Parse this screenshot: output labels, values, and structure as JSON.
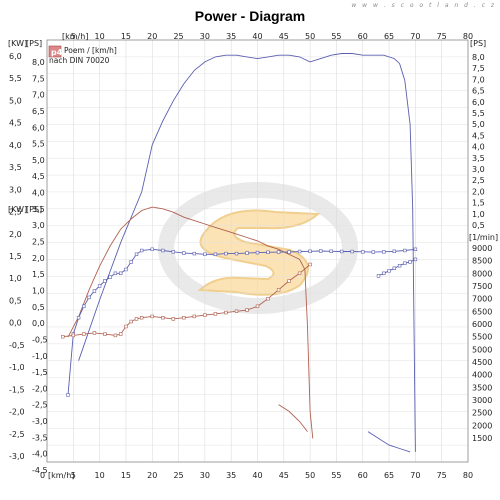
{
  "header": {
    "title": "Power - Diagram",
    "watermark_url": "w w w . s c o o t l a n d . c z"
  },
  "chart_data": {
    "type": "line",
    "title": "Power - Diagram",
    "x_unit_label": "[km/h]",
    "x_range": [
      0,
      80
    ],
    "x_ticks": [
      "5",
      "10",
      "15",
      "20",
      "25",
      "30",
      "35",
      "40",
      "45",
      "50",
      "55",
      "60",
      "65",
      "70",
      "75",
      "80"
    ],
    "y_left_outer_unit": "[KW]",
    "y_left_outer_range": [
      -3.0,
      6.0
    ],
    "y_left_outer_ticks": [
      "-3,0",
      "-2,5",
      "-2,0",
      "-1,5",
      "-1,0",
      "-0,5",
      "0,0",
      "0,5",
      "1,0",
      "1,5",
      "2,0",
      "2,5",
      "3,0",
      "3,5",
      "4,0",
      "4,5",
      "5,0",
      "5,5",
      "6,0"
    ],
    "y_left_inner_unit": "[PS]",
    "y_left_inner_range": [
      -4.5,
      8.0
    ],
    "y_left_inner_ticks": [
      "-4,5",
      "-4,0",
      "-3,5",
      "-3,0",
      "-2,5",
      "-2,0",
      "-1,5",
      "-1,0",
      "-0,5",
      "0,0",
      "0,5",
      "1,0",
      "1,5",
      "2,0",
      "2,5",
      "3,0",
      "3,5",
      "4,0",
      "4,5",
      "5,0",
      "5,5",
      "6,0",
      "6,5",
      "7,0",
      "7,5",
      "8,0"
    ],
    "y_right_upper_unit": "[PS]",
    "y_right_upper_ticks": [
      "0,5",
      "1,0",
      "1,5",
      "2,0",
      "2,5",
      "3,0",
      "3,5",
      "4,0",
      "4,5",
      "5,0",
      "5,5",
      "6,0",
      "6,5",
      "7,0",
      "7,5",
      "8,0"
    ],
    "y_right_lower_unit": "[1/min]",
    "y_right_lower_range": [
      1500,
      9000
    ],
    "y_right_lower_ticks": [
      "1500",
      "2000",
      "2500",
      "3000",
      "3500",
      "4000",
      "4500",
      "5000",
      "5500",
      "6000",
      "6500",
      "7000",
      "7500",
      "8000",
      "8500",
      "9000"
    ],
    "legend": {
      "badge": "p4",
      "line1": "Poem / [km/h]",
      "line2": "nach DIN 70020"
    },
    "series": [
      {
        "color": "#5a5fb0",
        "axis": "left_inner_PS",
        "x": [
          6,
          10,
          14,
          18,
          19,
          20,
          22,
          24,
          26,
          28,
          30,
          32,
          34,
          36,
          38,
          40,
          42,
          44,
          46,
          48,
          50,
          52,
          54,
          56,
          58,
          60,
          62,
          64,
          66,
          67,
          68,
          69,
          69.5,
          70
        ],
        "y": [
          -1.5,
          0.3,
          2.0,
          3.5,
          4.2,
          4.9,
          5.6,
          6.2,
          6.7,
          7.1,
          7.35,
          7.5,
          7.55,
          7.55,
          7.5,
          7.45,
          7.5,
          7.55,
          7.55,
          7.5,
          7.35,
          7.45,
          7.55,
          7.6,
          7.6,
          7.55,
          7.55,
          7.55,
          7.45,
          7.3,
          6.8,
          5.5,
          3.0,
          -4.2
        ]
      },
      {
        "color": "#b06050",
        "axis": "left_inner_PS",
        "x": [
          4,
          6,
          8,
          10,
          12,
          14,
          16,
          18,
          20,
          22,
          24,
          26,
          28,
          30,
          32,
          34,
          36,
          38,
          40,
          42,
          44,
          46,
          48,
          49,
          49.5,
          50,
          50.5
        ],
        "y": [
          -0.8,
          -0.2,
          0.6,
          1.3,
          1.9,
          2.4,
          2.7,
          2.95,
          3.05,
          3.0,
          2.9,
          2.75,
          2.65,
          2.55,
          2.45,
          2.35,
          2.25,
          2.15,
          2.05,
          1.9,
          1.8,
          1.65,
          1.5,
          1.2,
          -0.5,
          -3.0,
          -3.8
        ]
      },
      {
        "color": "#b06050",
        "axis": "left_inner_PS",
        "x": [
          44,
          46,
          48,
          49.5
        ],
        "y": [
          -2.8,
          -3.0,
          -3.3,
          -3.6
        ]
      },
      {
        "color": "#5a5fb0",
        "axis": "left_inner_PS",
        "x": [
          61,
          63,
          65,
          67,
          69
        ],
        "y": [
          -3.6,
          -3.8,
          -4.0,
          -4.1,
          -4.2
        ]
      },
      {
        "color": "#5a5fb0",
        "axis": "right_lower_rpm",
        "markers": true,
        "x": [
          4,
          5,
          6,
          7,
          8,
          9,
          10,
          11,
          12,
          13,
          14,
          15,
          16,
          17,
          18,
          20,
          22,
          24,
          26,
          28,
          30,
          32,
          34,
          36,
          38,
          40,
          42,
          44,
          46,
          48,
          50,
          52,
          54,
          56,
          58,
          60,
          62,
          64,
          66,
          68,
          70
        ],
        "y": [
          3200,
          5600,
          6250,
          6700,
          7050,
          7300,
          7500,
          7700,
          7850,
          8000,
          8000,
          8150,
          8450,
          8750,
          8900,
          8950,
          8900,
          8850,
          8800,
          8780,
          8750,
          8750,
          8780,
          8780,
          8800,
          8820,
          8830,
          8840,
          8840,
          8860,
          8870,
          8880,
          8870,
          8860,
          8860,
          8850,
          8840,
          8850,
          8870,
          8900,
          8950
        ]
      },
      {
        "color": "#5a5fb0",
        "axis": "right_lower_rpm",
        "markers": true,
        "x": [
          63,
          64,
          65,
          66,
          67,
          68,
          69,
          70
        ],
        "y": [
          7900,
          8000,
          8100,
          8200,
          8300,
          8400,
          8450,
          8550
        ]
      },
      {
        "color": "#b06050",
        "axis": "right_lower_rpm",
        "markers": true,
        "x": [
          3,
          5,
          7,
          9,
          11,
          13,
          14,
          15,
          16,
          17,
          18,
          20,
          22,
          24,
          26,
          28,
          30,
          32,
          34,
          36,
          38,
          40,
          42,
          44,
          46,
          48,
          50
        ],
        "y": [
          5500,
          5550,
          5600,
          5650,
          5600,
          5550,
          5600,
          5900,
          6100,
          6200,
          6250,
          6300,
          6250,
          6200,
          6250,
          6300,
          6350,
          6400,
          6450,
          6500,
          6550,
          6700,
          7000,
          7350,
          7700,
          8000,
          8350
        ]
      }
    ]
  }
}
